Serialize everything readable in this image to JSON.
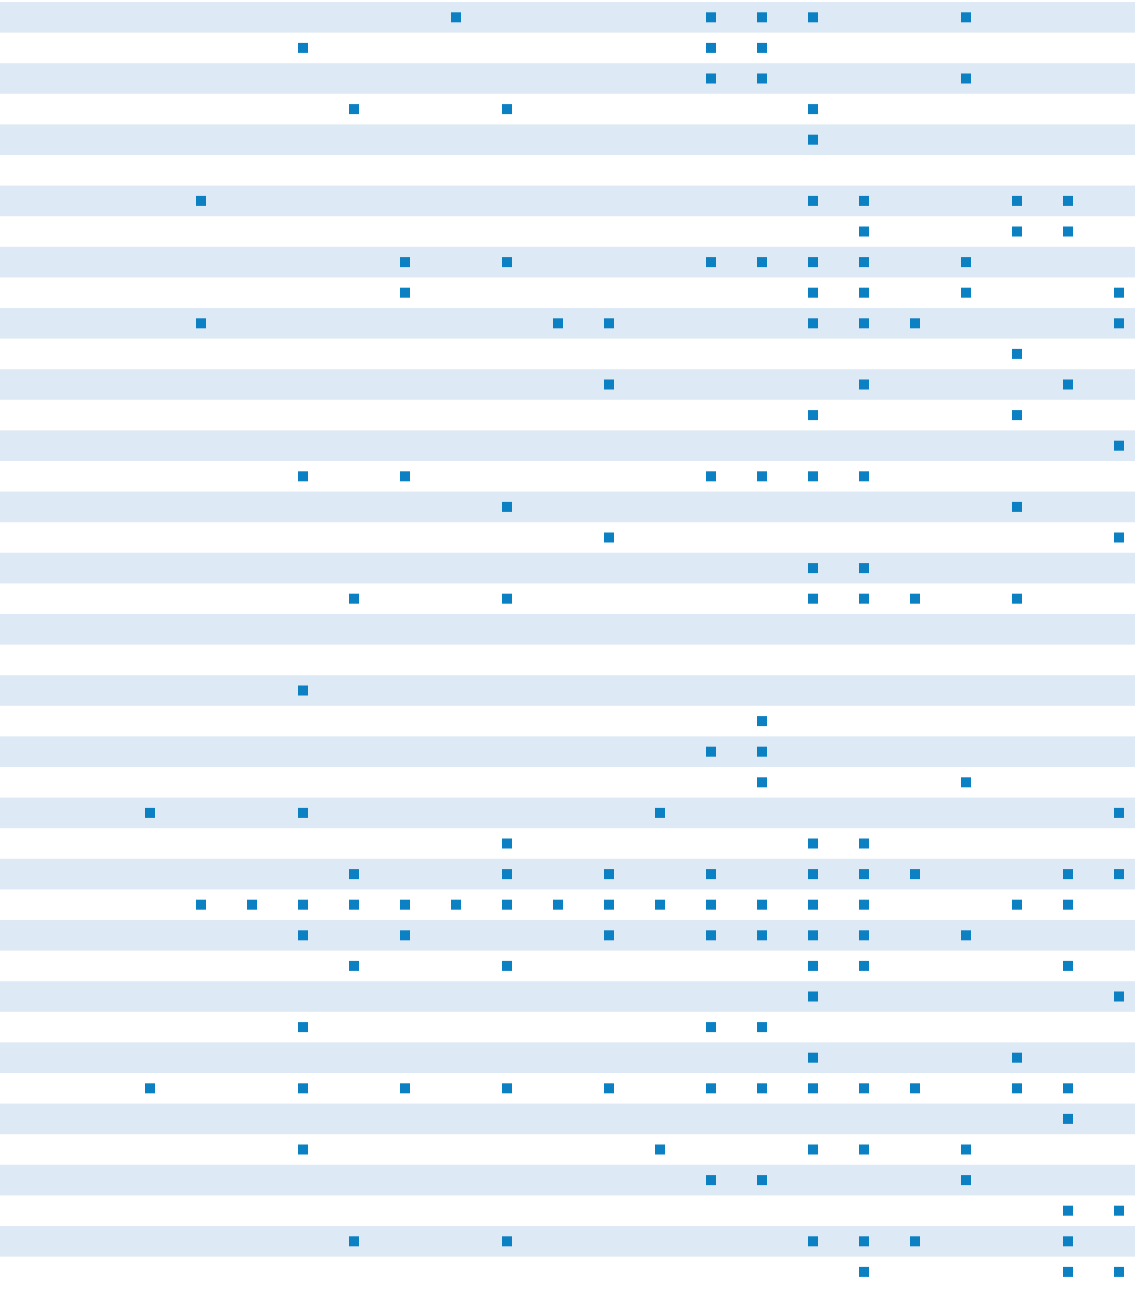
{
  "table": {
    "columns": 20,
    "marker_color": "#0b80c3",
    "stripe_color": "#dde9f4",
    "rows": [
      [
        6,
        11,
        12,
        13,
        16
      ],
      [
        3,
        11,
        12
      ],
      [
        11,
        12,
        16
      ],
      [
        4,
        7,
        13
      ],
      [
        13
      ],
      [],
      [
        1,
        13,
        14,
        17,
        18
      ],
      [
        14,
        17,
        18
      ],
      [
        5,
        7,
        11,
        12,
        13,
        14,
        16
      ],
      [
        5,
        13,
        14,
        16,
        19
      ],
      [
        1,
        8,
        9,
        13,
        14,
        15,
        19
      ],
      [
        17
      ],
      [
        9,
        14,
        18
      ],
      [
        13,
        17
      ],
      [
        19
      ],
      [
        3,
        5,
        11,
        12,
        13,
        14
      ],
      [
        7,
        17
      ],
      [
        9,
        19
      ],
      [
        13,
        14
      ],
      [
        4,
        7,
        13,
        14,
        15,
        17
      ],
      [],
      [],
      [
        3
      ],
      [
        12
      ],
      [
        11,
        12
      ],
      [
        12,
        16
      ],
      [
        0,
        3,
        10,
        19
      ],
      [
        7,
        13,
        14
      ],
      [
        4,
        7,
        9,
        11,
        13,
        14,
        15,
        18,
        19
      ],
      [
        1,
        2,
        3,
        4,
        5,
        6,
        7,
        8,
        9,
        10,
        11,
        12,
        13,
        14,
        17,
        18
      ],
      [
        3,
        5,
        9,
        11,
        12,
        13,
        14,
        16
      ],
      [
        4,
        7,
        13,
        14,
        18
      ],
      [
        13,
        19
      ],
      [
        3,
        11,
        12
      ],
      [
        13,
        17
      ],
      [
        0,
        3,
        5,
        7,
        9,
        11,
        12,
        13,
        14,
        15,
        17,
        18
      ],
      [
        18
      ],
      [
        3,
        10,
        13,
        14,
        16
      ],
      [
        11,
        12,
        16
      ],
      [
        18,
        19
      ],
      [
        4,
        7,
        13,
        14,
        15,
        18
      ],
      [
        14,
        18,
        19
      ]
    ]
  }
}
